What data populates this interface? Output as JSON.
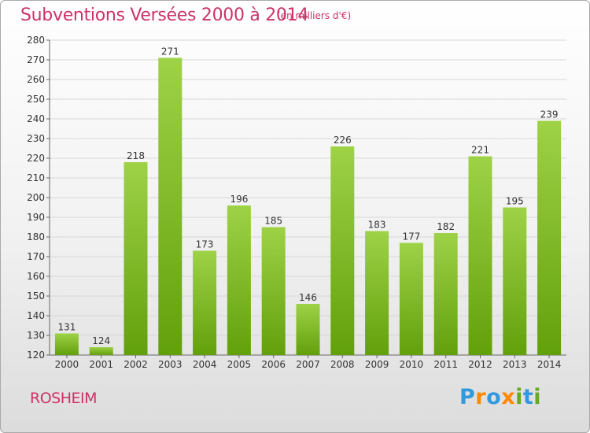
{
  "header": {
    "title": "Subventions Versées 2000 à 2014",
    "subtitle": "(en milliers d'€)"
  },
  "footer": {
    "commune": "ROSHEIM",
    "brand_letters": [
      {
        "ch": "P",
        "color": "#3399dd"
      },
      {
        "ch": "r",
        "color": "#ff8800"
      },
      {
        "ch": "o",
        "color": "#3399dd"
      },
      {
        "ch": "x",
        "color": "#ff8800"
      },
      {
        "ch": "i",
        "color": "#66aa22"
      },
      {
        "ch": "t",
        "color": "#3399dd"
      },
      {
        "ch": "i",
        "color": "#66aa22"
      }
    ]
  },
  "colors": {
    "title": "#cc3366",
    "bar_light": "#9ed247",
    "bar_dark": "#62a00b",
    "grid": "#d8d8d8"
  },
  "chart_data": {
    "type": "bar",
    "title": "Subventions Versées 2000 à 2014",
    "subtitle": "(en milliers d'€)",
    "categories": [
      "2000",
      "2001",
      "2002",
      "2003",
      "2004",
      "2005",
      "2006",
      "2007",
      "2008",
      "2009",
      "2010",
      "2011",
      "2012",
      "2013",
      "2014"
    ],
    "values": [
      131,
      124,
      218,
      271,
      173,
      196,
      185,
      146,
      226,
      183,
      177,
      182,
      221,
      195,
      239
    ],
    "ylim": [
      120,
      280
    ],
    "yticks": [
      120,
      130,
      140,
      150,
      160,
      170,
      180,
      190,
      200,
      210,
      220,
      230,
      240,
      250,
      260,
      270,
      280
    ],
    "grid": true,
    "legend": "none"
  }
}
